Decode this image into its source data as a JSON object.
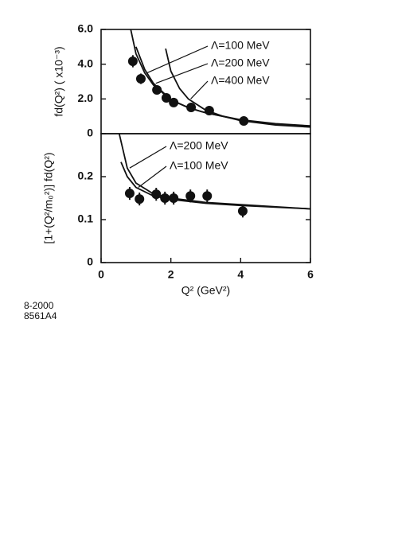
{
  "chart_data": [
    {
      "type": "scatter",
      "y_label": "fd(Q²) ( x10⁻³)",
      "xlim": [
        0,
        6
      ],
      "ylim": [
        0,
        6
      ],
      "yticks": [
        0,
        {
          "value": 2,
          "label": "2.0"
        },
        {
          "value": 4,
          "label": "4.0"
        },
        {
          "value": 6,
          "label": "6.0"
        }
      ],
      "x": [
        0.91,
        1.14,
        1.6,
        1.87,
        2.08,
        2.58,
        3.1,
        4.09
      ],
      "values": [
        4.17,
        3.16,
        2.52,
        2.06,
        1.79,
        1.51,
        1.33,
        0.73
      ],
      "errors": [
        0.35,
        0.3,
        0.25,
        0.2,
        0.2,
        0.15,
        0.15,
        0.12
      ],
      "color": "#111111",
      "series": [
        {
          "name": "Λ=100 MeV",
          "color": "#111111",
          "x": [
            0.85,
            1,
            1.25,
            1.5,
            2,
            2.5,
            3,
            4,
            5,
            6
          ],
          "values": [
            6.0,
            4.6,
            3.5,
            2.8,
            1.95,
            1.5,
            1.2,
            0.8,
            0.58,
            0.45
          ]
        },
        {
          "name": "Λ=200 MeV",
          "color": "#111111",
          "x": [
            1.0,
            1.25,
            1.5,
            2,
            2.5,
            3,
            4,
            5,
            6
          ],
          "values": [
            5.0,
            3.7,
            2.9,
            1.95,
            1.5,
            1.2,
            0.78,
            0.55,
            0.42
          ]
        },
        {
          "name": "Λ=400 MeV",
          "color": "#111111",
          "x": [
            1.85,
            2,
            2.25,
            2.5,
            3,
            3.5,
            4,
            5,
            6
          ],
          "values": [
            4.9,
            3.6,
            2.6,
            2.0,
            1.35,
            1.0,
            0.75,
            0.5,
            0.38
          ]
        }
      ]
    },
    {
      "type": "scatter",
      "y_label": "[1+(Q²/m₀²)] fd(Q²)",
      "x_label": "Q² (GeV²)",
      "xlim": [
        0,
        6
      ],
      "ylim": [
        0,
        0.3
      ],
      "xticks": [
        0,
        2,
        4,
        6
      ],
      "yticks": [
        0,
        0.1,
        0.2
      ],
      "x": [
        0.82,
        1.1,
        1.58,
        1.83,
        2.08,
        2.56,
        3.04,
        4.06
      ],
      "values": [
        0.161,
        0.148,
        0.159,
        0.15,
        0.15,
        0.155,
        0.155,
        0.12
      ],
      "errors": [
        0.015,
        0.015,
        0.015,
        0.015,
        0.015,
        0.015,
        0.015,
        0.015
      ],
      "color": "#111111",
      "series": [
        {
          "name": "Λ=200 MeV",
          "color": "#111111",
          "x": [
            0.52,
            0.75,
            1,
            1.5,
            2,
            3,
            4,
            6
          ],
          "values": [
            0.3,
            0.22,
            0.185,
            0.16,
            0.15,
            0.14,
            0.135,
            0.125
          ]
        },
        {
          "name": "Λ=100 MeV",
          "color": "#111111",
          "x": [
            0.57,
            0.75,
            1,
            1.5,
            2,
            3,
            4,
            6
          ],
          "values": [
            0.234,
            0.2,
            0.175,
            0.155,
            0.147,
            0.138,
            0.133,
            0.125
          ]
        }
      ]
    }
  ],
  "notes": [
    "8-2000",
    "8561A4"
  ]
}
